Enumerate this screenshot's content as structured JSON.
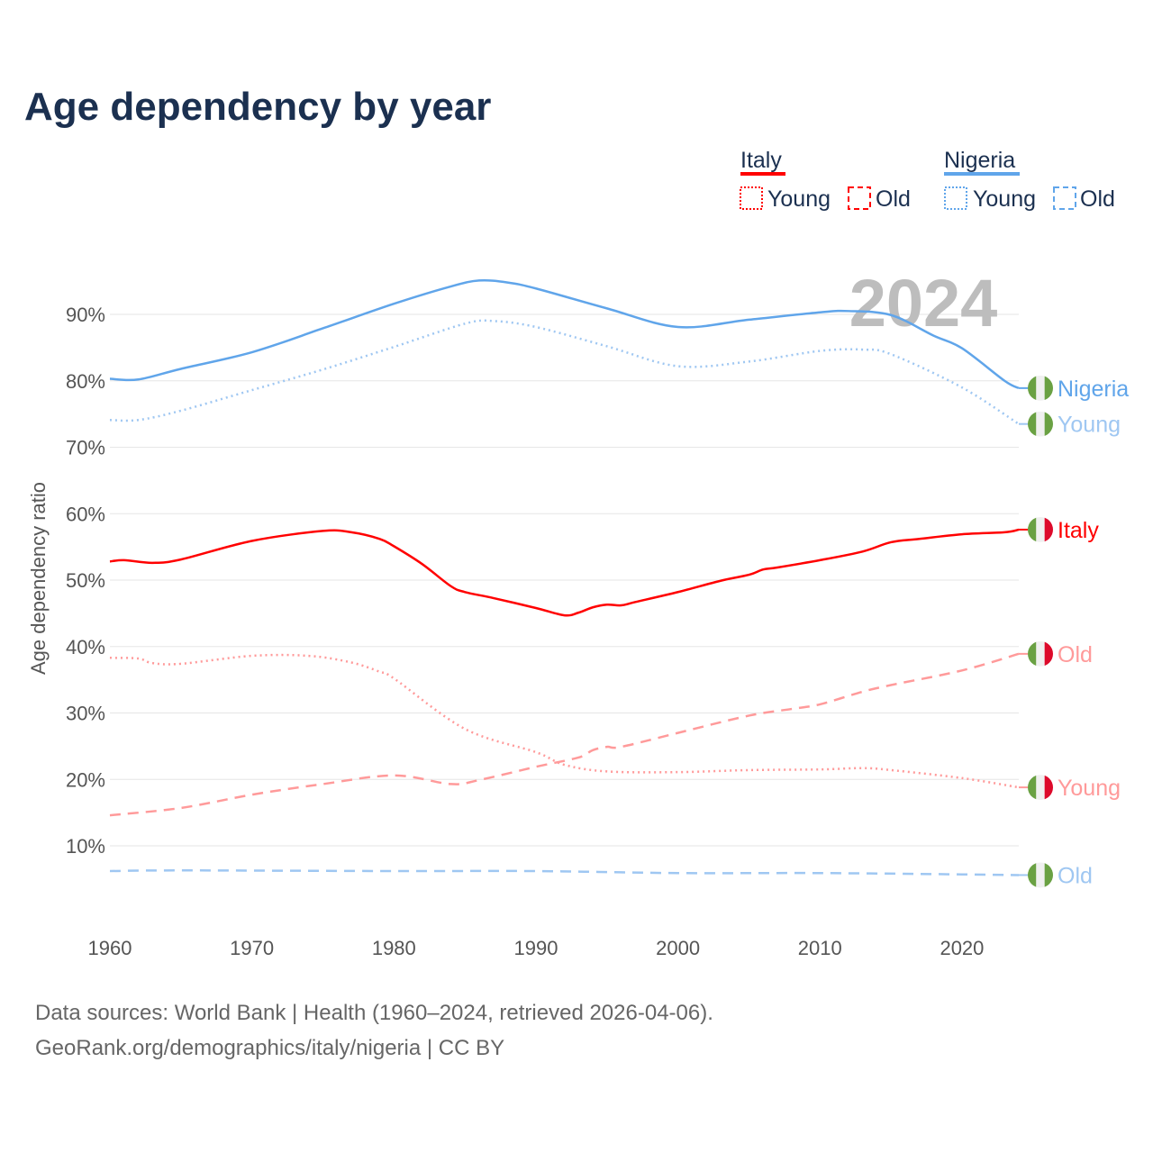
{
  "title": "Age dependency by year",
  "legend": {
    "groups": [
      {
        "name": "Italy",
        "color": "#ff0000",
        "items": [
          "Young",
          "Old"
        ]
      },
      {
        "name": "Nigeria",
        "color": "#60a5ea",
        "items": [
          "Young",
          "Old"
        ]
      }
    ]
  },
  "year_watermark": "2024",
  "footer": {
    "line1": "Data sources: World Bank | Health (1960–2024, retrieved 2026-04-06).",
    "line2": "GeoRank.org/demographics/italy/nigeria | CC BY"
  },
  "chart_data": {
    "type": "line",
    "title": "Age dependency by year",
    "xlabel": "",
    "ylabel": "Age dependency ratio",
    "xlim": [
      1960,
      2024
    ],
    "ylim": [
      0,
      100
    ],
    "x_ticks": [
      "1960",
      "1970",
      "1980",
      "1990",
      "2000",
      "2010",
      "2020"
    ],
    "y_ticks": [
      "10%",
      "20%",
      "30%",
      "40%",
      "50%",
      "60%",
      "70%",
      "80%",
      "90%"
    ],
    "grid": true,
    "legend_position": "top-right",
    "series": [
      {
        "name": "Nigeria",
        "end_label": "Nigeria",
        "country": "nigeria",
        "color": "#60a5ea",
        "style": "solid",
        "points": [
          [
            1960,
            80.3
          ],
          [
            1962,
            80.2
          ],
          [
            1965,
            81.8
          ],
          [
            1970,
            84.3
          ],
          [
            1975,
            87.9
          ],
          [
            1980,
            91.6
          ],
          [
            1984,
            94.2
          ],
          [
            1986,
            95.1
          ],
          [
            1988,
            94.8
          ],
          [
            1990,
            93.9
          ],
          [
            1995,
            90.9
          ],
          [
            2000,
            88.1
          ],
          [
            2005,
            89.2
          ],
          [
            2010,
            90.3
          ],
          [
            2012,
            90.5
          ],
          [
            2015,
            89.9
          ],
          [
            2018,
            86.8
          ],
          [
            2020,
            84.9
          ],
          [
            2023,
            80.0
          ],
          [
            2024,
            78.9
          ]
        ]
      },
      {
        "name": "Nigeria Young",
        "end_label": "Young",
        "country": "nigeria",
        "color": "#9fc7f2",
        "style": "dotted",
        "points": [
          [
            1960,
            74.1
          ],
          [
            1962,
            74.1
          ],
          [
            1965,
            75.5
          ],
          [
            1970,
            78.6
          ],
          [
            1975,
            81.7
          ],
          [
            1980,
            85.1
          ],
          [
            1985,
            88.6
          ],
          [
            1987,
            89.0
          ],
          [
            1990,
            88.1
          ],
          [
            1995,
            85.2
          ],
          [
            2000,
            82.2
          ],
          [
            2005,
            82.9
          ],
          [
            2010,
            84.5
          ],
          [
            2013,
            84.7
          ],
          [
            2015,
            84.0
          ],
          [
            2020,
            79.0
          ],
          [
            2024,
            73.5
          ]
        ]
      },
      {
        "name": "Nigeria Old",
        "end_label": "Old",
        "country": "nigeria",
        "color": "#9fc7f2",
        "style": "dashed",
        "points": [
          [
            1960,
            6.2
          ],
          [
            1965,
            6.3
          ],
          [
            1980,
            6.2
          ],
          [
            1990,
            6.2
          ],
          [
            2000,
            5.9
          ],
          [
            2010,
            5.9
          ],
          [
            2020,
            5.7
          ],
          [
            2024,
            5.6
          ]
        ]
      },
      {
        "name": "Italy",
        "end_label": "Italy",
        "country": "italy",
        "color": "#ff0000",
        "style": "solid",
        "points": [
          [
            1960,
            52.8
          ],
          [
            1961,
            53.0
          ],
          [
            1963,
            52.6
          ],
          [
            1965,
            53.1
          ],
          [
            1970,
            55.9
          ],
          [
            1975,
            57.4
          ],
          [
            1977,
            57.2
          ],
          [
            1979,
            56.2
          ],
          [
            1980,
            55.1
          ],
          [
            1982,
            52.4
          ],
          [
            1984,
            49.1
          ],
          [
            1985,
            48.2
          ],
          [
            1987,
            47.3
          ],
          [
            1990,
            45.8
          ],
          [
            1992,
            44.7
          ],
          [
            1993,
            45.1
          ],
          [
            1994,
            45.9
          ],
          [
            1995,
            46.3
          ],
          [
            1996,
            46.2
          ],
          [
            1997,
            46.7
          ],
          [
            2000,
            48.2
          ],
          [
            2003,
            49.9
          ],
          [
            2005,
            50.8
          ],
          [
            2006,
            51.6
          ],
          [
            2007,
            51.9
          ],
          [
            2010,
            53.0
          ],
          [
            2013,
            54.3
          ],
          [
            2015,
            55.7
          ],
          [
            2017,
            56.2
          ],
          [
            2020,
            56.9
          ],
          [
            2023,
            57.2
          ],
          [
            2024,
            57.6
          ]
        ]
      },
      {
        "name": "Italy Old",
        "end_label": "Old",
        "country": "italy",
        "color": "#ff9a9a",
        "style": "dashed",
        "points": [
          [
            1960,
            14.6
          ],
          [
            1965,
            15.7
          ],
          [
            1970,
            17.7
          ],
          [
            1975,
            19.3
          ],
          [
            1980,
            20.6
          ],
          [
            1984,
            19.3
          ],
          [
            1986,
            19.9
          ],
          [
            1990,
            21.9
          ],
          [
            1993,
            23.3
          ],
          [
            1994,
            24.4
          ],
          [
            1995,
            24.9
          ],
          [
            1996,
            24.9
          ],
          [
            2000,
            27.0
          ],
          [
            2005,
            29.6
          ],
          [
            2008,
            30.6
          ],
          [
            2010,
            31.3
          ],
          [
            2013,
            33.2
          ],
          [
            2015,
            34.2
          ],
          [
            2020,
            36.4
          ],
          [
            2024,
            38.9
          ]
        ]
      },
      {
        "name": "Italy Young",
        "end_label": "Young",
        "country": "italy",
        "color": "#ff9a9a",
        "style": "dotted",
        "points": [
          [
            1960,
            38.3
          ],
          [
            1962,
            38.2
          ],
          [
            1963,
            37.5
          ],
          [
            1965,
            37.4
          ],
          [
            1970,
            38.6
          ],
          [
            1974,
            38.6
          ],
          [
            1977,
            37.6
          ],
          [
            1979,
            36.2
          ],
          [
            1980,
            35.2
          ],
          [
            1985,
            27.6
          ],
          [
            1990,
            24.1
          ],
          [
            1992,
            22.2
          ],
          [
            1995,
            21.2
          ],
          [
            2000,
            21.1
          ],
          [
            2005,
            21.4
          ],
          [
            2010,
            21.5
          ],
          [
            2013,
            21.7
          ],
          [
            2015,
            21.4
          ],
          [
            2020,
            20.2
          ],
          [
            2024,
            18.8
          ]
        ]
      }
    ]
  }
}
